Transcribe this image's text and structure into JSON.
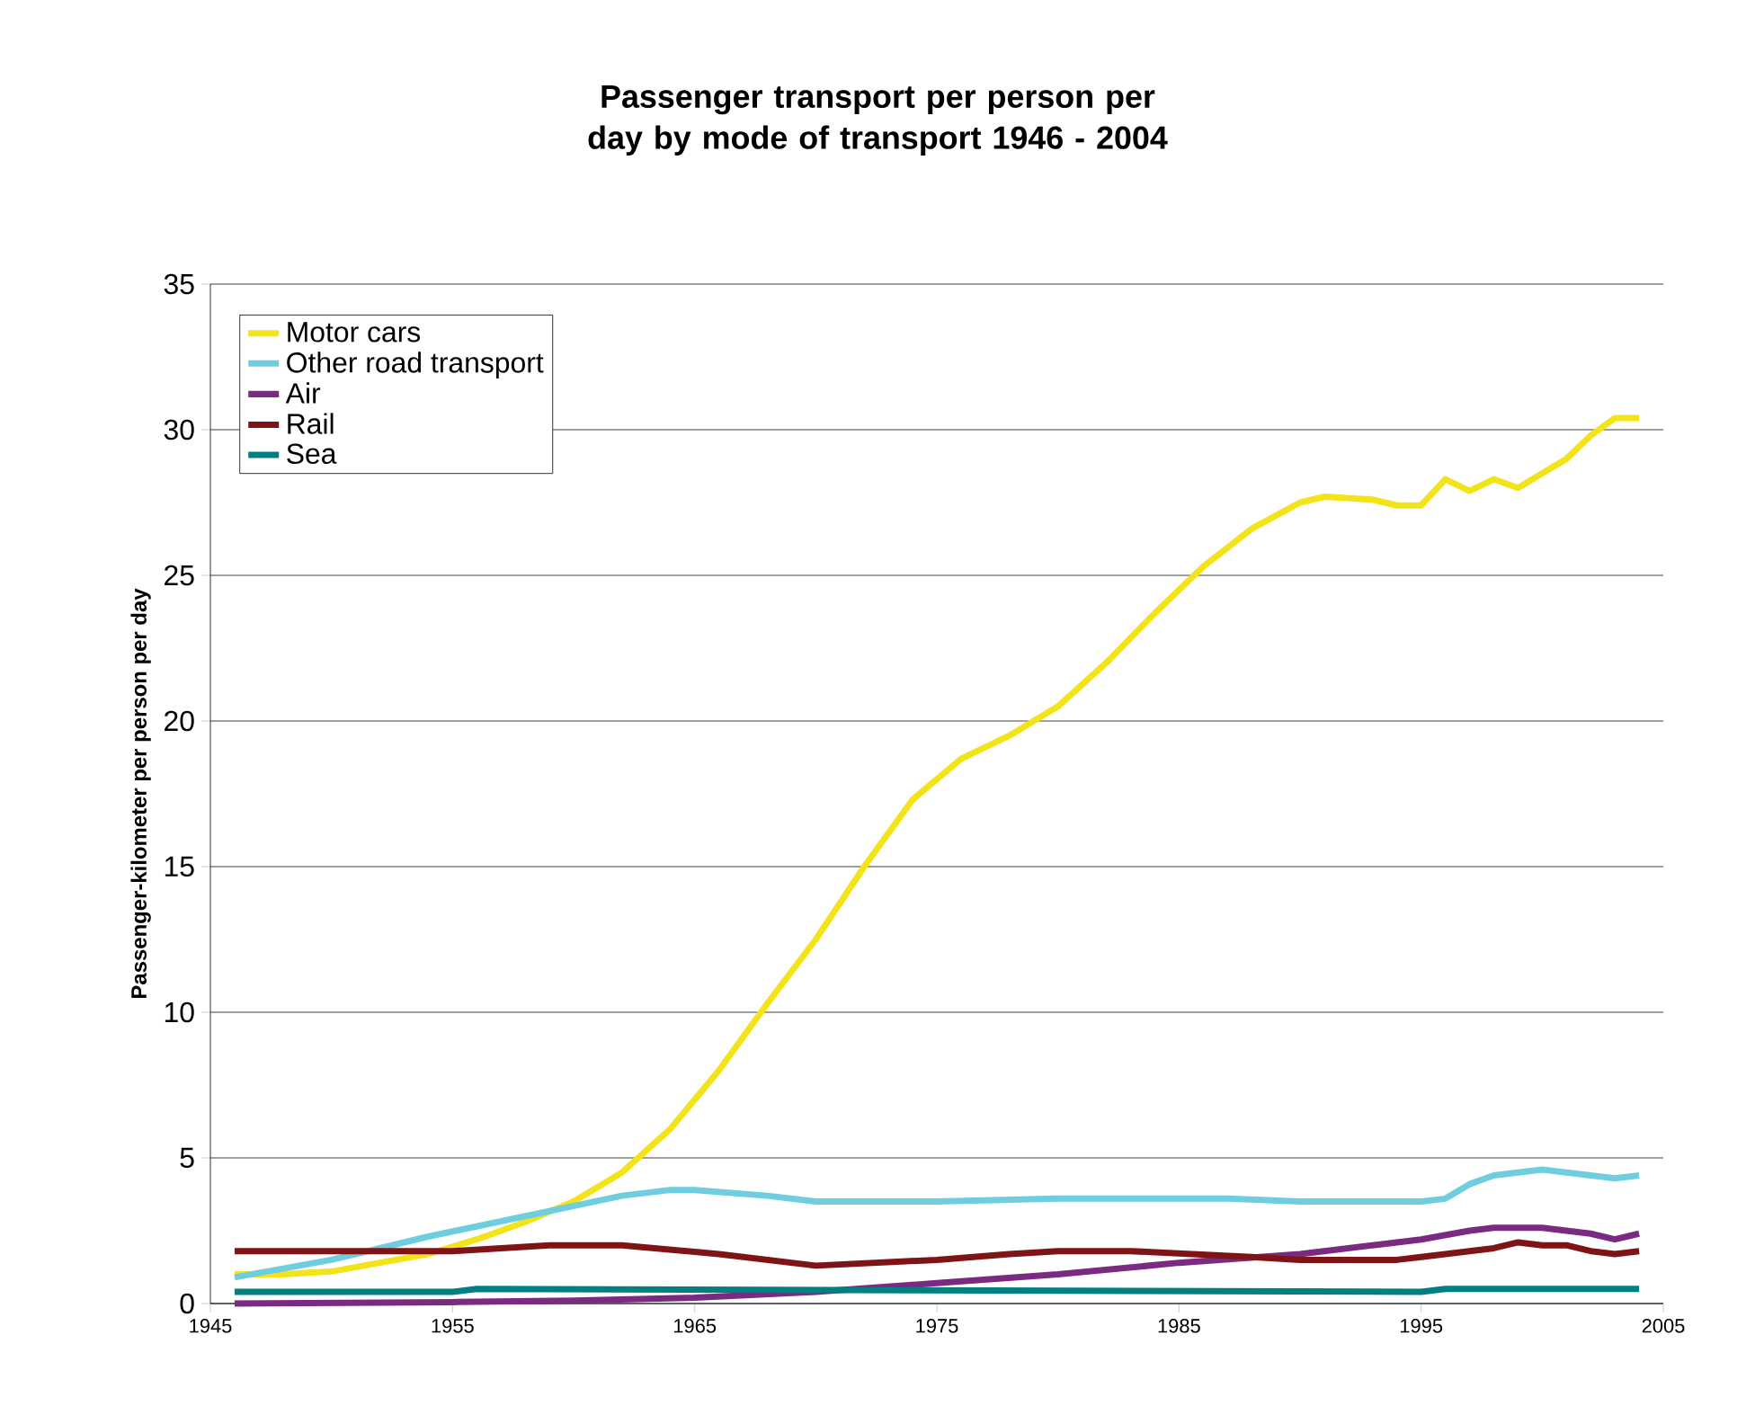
{
  "chart_data": {
    "type": "line",
    "title": "Passenger transport per person per day by mode of transport 1946 - 2004",
    "ylabel": "Passenger-kilometer per person per day",
    "xlim": [
      1945,
      2005
    ],
    "xticks": [
      1945,
      1955,
      1965,
      1975,
      1985,
      1995,
      2005
    ],
    "ylim": [
      0,
      35
    ],
    "yticks": [
      0,
      5,
      10,
      15,
      20,
      25,
      30,
      35
    ],
    "grid": "y",
    "legend": "top left",
    "marker": "none",
    "line_style": "solid",
    "series": [
      {
        "name": "Motor cars",
        "color": "#f2e418",
        "x": [
          1946,
          1948,
          1950,
          1952,
          1954,
          1956,
          1958,
          1960,
          1962,
          1964,
          1966,
          1968,
          1970,
          1972,
          1974,
          1976,
          1978,
          1980,
          1982,
          1984,
          1986,
          1988,
          1990,
          1991,
          1993,
          1994,
          1995,
          1996,
          1997,
          1998,
          1999,
          2000,
          2001,
          2002,
          2003,
          2004
        ],
        "values": [
          1.0,
          1.0,
          1.1,
          1.4,
          1.7,
          2.2,
          2.8,
          3.5,
          4.5,
          6.0,
          8.0,
          10.3,
          12.5,
          15.0,
          17.3,
          18.7,
          19.5,
          20.5,
          22.0,
          23.7,
          25.3,
          26.6,
          27.5,
          27.7,
          27.6,
          27.4,
          27.4,
          28.3,
          27.9,
          28.3,
          28.0,
          28.5,
          29.0,
          29.8,
          30.4,
          30.4
        ]
      },
      {
        "name": "Other road transport",
        "color": "#6ecedf",
        "x": [
          1946,
          1950,
          1954,
          1958,
          1962,
          1964,
          1965,
          1968,
          1970,
          1975,
          1980,
          1987,
          1990,
          1995,
          1996,
          1997,
          1998,
          1999,
          2000,
          2001,
          2002,
          2003,
          2004
        ],
        "values": [
          0.9,
          1.5,
          2.3,
          3.0,
          3.7,
          3.9,
          3.9,
          3.7,
          3.5,
          3.5,
          3.6,
          3.6,
          3.5,
          3.5,
          3.6,
          4.1,
          4.4,
          4.5,
          4.6,
          4.5,
          4.4,
          4.3,
          4.4
        ]
      },
      {
        "name": "Air",
        "color": "#7b2a82",
        "x": [
          1946,
          1955,
          1960,
          1965,
          1970,
          1975,
          1980,
          1985,
          1990,
          1993,
          1995,
          1997,
          1998,
          2000,
          2002,
          2003,
          2004
        ],
        "values": [
          0.0,
          0.05,
          0.1,
          0.2,
          0.4,
          0.7,
          1.0,
          1.4,
          1.7,
          2.0,
          2.2,
          2.5,
          2.6,
          2.6,
          2.4,
          2.2,
          2.4
        ]
      },
      {
        "name": "Rail",
        "color": "#7f1416",
        "x": [
          1946,
          1955,
          1959,
          1962,
          1966,
          1970,
          1975,
          1978,
          1980,
          1983,
          1988,
          1990,
          1994,
          1995,
          1997,
          1998,
          1999,
          2000,
          2001,
          2002,
          2003,
          2004
        ],
        "values": [
          1.8,
          1.8,
          2.0,
          2.0,
          1.7,
          1.3,
          1.5,
          1.7,
          1.8,
          1.8,
          1.6,
          1.5,
          1.5,
          1.6,
          1.8,
          1.9,
          2.1,
          2.0,
          2.0,
          1.8,
          1.7,
          1.8
        ]
      },
      {
        "name": "Sea",
        "color": "#008080",
        "x": [
          1946,
          1955,
          1956,
          1995,
          1996,
          2004
        ],
        "values": [
          0.4,
          0.4,
          0.5,
          0.4,
          0.5,
          0.5
        ]
      }
    ]
  }
}
